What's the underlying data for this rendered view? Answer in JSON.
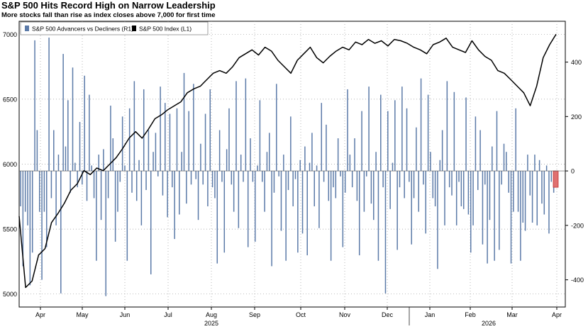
{
  "title": "S&P 500 Hits Record High on Narrow Leadership",
  "subtitle": "More stocks fall than rise as index closes above 7,000 for first time",
  "chart_data": {
    "type": "bar+line",
    "title": "S&P 500 Hits Record High on Narrow Leadership",
    "subtitle": "More stocks fall than rise as index closes above 7,000 for first time",
    "legend_position": "top-left",
    "grid": true,
    "colors": {
      "bars": "#5b7aa8",
      "line": "#000000",
      "last_bar": "#e07070"
    },
    "x_labels": {
      "months": [
        "Apr",
        "May",
        "Jun",
        "Jul",
        "Aug",
        "Sep",
        "Oct",
        "Nov",
        "Dec",
        "Jan",
        "Feb",
        "Mar",
        "Apr"
      ],
      "years": [
        "2025",
        "2026"
      ]
    },
    "left_axis": {
      "ylim": [
        4900,
        7100
      ],
      "ticks": [
        5000,
        5500,
        6000,
        6500,
        7000
      ]
    },
    "right_axis": {
      "ylim": [
        -500,
        550
      ],
      "ticks": [
        400,
        200,
        0,
        -200,
        -400
      ]
    },
    "series": [
      {
        "name": "S&P 500 Advancers vs Decliners  (R1)",
        "type": "bar",
        "axis": "right",
        "values": [
          -130,
          -350,
          -150,
          -200,
          -420,
          -300,
          480,
          150,
          -150,
          -400,
          -150,
          -280,
          490,
          -100,
          150,
          -200,
          60,
          -450,
          430,
          90,
          260,
          -80,
          380,
          30,
          -60,
          180,
          -50,
          350,
          -110,
          280,
          20,
          -100,
          -330,
          60,
          -180,
          80,
          -460,
          -100,
          240,
          120,
          -260,
          -150,
          -40,
          200,
          20,
          -330,
          230,
          -80,
          330,
          -110,
          40,
          -200,
          300,
          -70,
          150,
          -380,
          70,
          140,
          -20,
          310,
          -90,
          250,
          -170,
          210,
          -60,
          -250,
          230,
          -160,
          70,
          360,
          -120,
          220,
          -50,
          320,
          -30,
          -180,
          100,
          -50,
          210,
          -130,
          300,
          -60,
          -100,
          -340,
          150,
          -40,
          -300,
          80,
          230,
          -50,
          -150,
          330,
          -210,
          60,
          -40,
          340,
          -280,
          120,
          -40,
          -260,
          20,
          260,
          -40,
          -150,
          70,
          140,
          -350,
          -80,
          320,
          -20,
          -220,
          60,
          -330,
          -70,
          200,
          -130,
          -30,
          -300,
          40,
          -230,
          90,
          -310,
          30,
          140,
          -130,
          20,
          -210,
          250,
          -40,
          170,
          -110,
          -330,
          -60,
          -100,
          120,
          -20,
          -280,
          -80,
          300,
          60,
          -60,
          120,
          -110,
          -310,
          220,
          -150,
          -20,
          310,
          -120,
          -180,
          70,
          -330,
          280,
          -60,
          -450,
          220,
          -140,
          30,
          260,
          -290,
          -60,
          310,
          -100,
          230,
          -40,
          -270,
          -100,
          160,
          -150,
          340,
          -50,
          -230,
          280,
          70,
          -100,
          -130,
          -360,
          40,
          150,
          -200,
          330,
          -60,
          -90,
          290,
          -200,
          -40,
          -130,
          -140,
          270,
          -160,
          -300,
          -200,
          200,
          -70,
          150,
          -270,
          -50,
          -340,
          -180,
          90,
          -330,
          220,
          -290,
          -50,
          100,
          70,
          -80,
          -340,
          -150,
          230,
          -150,
          -330,
          -190,
          -220,
          60,
          -90,
          -190,
          60,
          -200,
          40,
          -120,
          -160,
          20,
          -230,
          -40,
          -80,
          -60
        ],
        "last_value": -60
      },
      {
        "name": "S&P 500 Index  (L1)",
        "type": "line",
        "axis": "left",
        "x": [
          0,
          3,
          6,
          9,
          12,
          15,
          18,
          21,
          24,
          27,
          30,
          33,
          36,
          39,
          42,
          45,
          48,
          51,
          54,
          57,
          60,
          63,
          66,
          69,
          72,
          75,
          78,
          81,
          84,
          87,
          90,
          93,
          96,
          99,
          102,
          105,
          108,
          111,
          114,
          117,
          120,
          123,
          126,
          129,
          132,
          135,
          138,
          141,
          144,
          147,
          150,
          153,
          156,
          159,
          162,
          165,
          168,
          171,
          174,
          177,
          180,
          183,
          186,
          189,
          192,
          195,
          198,
          201,
          204,
          207,
          210,
          213,
          216,
          219,
          222,
          225,
          228,
          231,
          234,
          237,
          240,
          243,
          246,
          249
        ],
        "values": [
          5600,
          5050,
          5100,
          5300,
          5350,
          5550,
          5620,
          5700,
          5800,
          5850,
          5950,
          5920,
          5970,
          5950,
          6000,
          6050,
          6120,
          6200,
          6250,
          6200,
          6270,
          6350,
          6380,
          6420,
          6450,
          6480,
          6550,
          6580,
          6600,
          6650,
          6700,
          6720,
          6700,
          6750,
          6820,
          6850,
          6880,
          6840,
          6900,
          6870,
          6800,
          6750,
          6700,
          6800,
          6850,
          6900,
          6820,
          6780,
          6830,
          6870,
          6900,
          6880,
          6940,
          6920,
          6960,
          6930,
          6950,
          6910,
          6960,
          6950,
          6930,
          6900,
          6880,
          6850,
          6920,
          6940,
          6970,
          6900,
          6880,
          6860,
          6950,
          6880,
          6830,
          6800,
          6720,
          6700,
          6650,
          6600,
          6550,
          6450,
          6600,
          6820,
          6920,
          7000
        ]
      }
    ],
    "annotations": []
  }
}
